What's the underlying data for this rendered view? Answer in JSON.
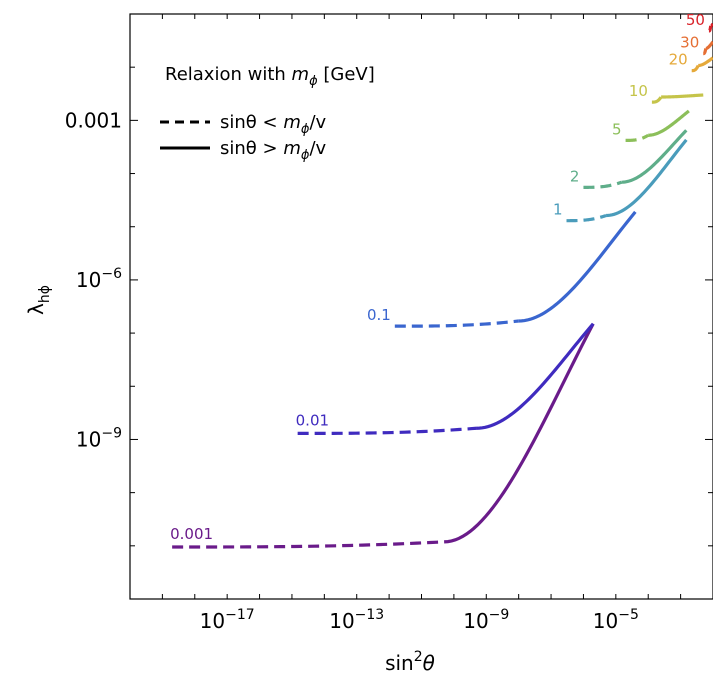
{
  "chart_data": {
    "type": "line",
    "title": "",
    "xlabel": "sin²θ",
    "ylabel": "λ_hϕ",
    "x_scale": "log",
    "y_scale": "log",
    "xlim": [
      1e-20,
      0.01
    ],
    "ylim": [
      1e-12,
      0.1
    ],
    "x_ticks": [
      {
        "value": 1e-17,
        "base": "10",
        "exp": "−17"
      },
      {
        "value": 1e-13,
        "base": "10",
        "exp": "−13"
      },
      {
        "value": 1e-09,
        "base": "10",
        "exp": "−9"
      },
      {
        "value": 1e-05,
        "base": "10",
        "exp": "−5"
      }
    ],
    "y_ticks": [
      {
        "value": 0.001,
        "text": "0.001"
      },
      {
        "value": 1e-06,
        "base": "10",
        "exp": "−6"
      },
      {
        "value": 1e-09,
        "base": "10",
        "exp": "−9"
      }
    ],
    "grid": false,
    "legend": {
      "placement": "top-left",
      "title_prefix": "Relaxion with ",
      "title_symbol": "m",
      "title_subscript": "ϕ",
      "title_suffix": " [GeV]",
      "entries": [
        {
          "style": "dashed",
          "label_prefix": "sinθ < ",
          "symbol": "m",
          "subscript": "ϕ",
          "suffix": "/v"
        },
        {
          "style": "solid",
          "label_prefix": "sinθ > ",
          "symbol": "m",
          "subscript": "ϕ",
          "suffix": "/v"
        }
      ]
    },
    "series": [
      {
        "name": "0.001",
        "color": "#6a1b8a",
        "dashed_x": [
          2e-19,
          5e-11
        ],
        "flat_y": 9.5e-12,
        "solid_x": [
          5e-11,
          2e-06
        ],
        "solid_end_y": 1.5e-07
      },
      {
        "name": "0.01",
        "color": "#3f2bbf",
        "dashed_x": [
          1.5e-15,
          5e-10
        ],
        "flat_y": 1.3e-09,
        "solid_x": [
          5e-10,
          2e-06
        ],
        "solid_end_y": 1.5e-07
      },
      {
        "name": "0.1",
        "color": "#3a66cf",
        "dashed_x": [
          1.5e-12,
          1e-08
        ],
        "flat_y": 1.35e-07,
        "solid_x": [
          1e-08,
          4e-05
        ],
        "solid_end_y": 1.9e-05
      },
      {
        "name": "1",
        "color": "#4a9cbb",
        "dashed_x": [
          3e-07,
          5e-06
        ],
        "flat_y": 1.3e-05,
        "solid_x": [
          5e-06,
          0.0015
        ],
        "solid_end_y": 0.00043
      },
      {
        "name": "2",
        "color": "#5fae8a",
        "dashed_x": [
          1e-06,
          1.5e-05
        ],
        "flat_y": 5.5e-05,
        "solid_x": [
          1.5e-05,
          0.0015
        ],
        "solid_end_y": 0.00065
      },
      {
        "name": "5",
        "color": "#8cbf5a",
        "dashed_x": [
          2e-05,
          0.0001
        ],
        "flat_y": 0.00042,
        "solid_x": [
          0.0001,
          0.0018
        ],
        "solid_end_y": 0.0015
      },
      {
        "name": "10",
        "color": "#c5c44a",
        "dashed_x": [
          0.00013,
          0.00025
        ],
        "flat_y": 0.0022,
        "solid_x": [
          0.00025,
          0.005
        ],
        "solid_end_y": 0.003
      },
      {
        "name": "20",
        "color": "#e5a93a",
        "dashed_x": [
          0.0022,
          0.0035
        ],
        "flat_y": 0.0086,
        "solid_x": [
          0.0035,
          0.01
        ],
        "solid_end_y": 0.015
      },
      {
        "name": "30",
        "color": "#e56f34",
        "dashed_x": [
          0.005,
          0.006
        ],
        "flat_y": 0.018,
        "solid_x": [
          0.006,
          0.01
        ],
        "solid_end_y": 0.03
      },
      {
        "name": "50",
        "color": "#d9232a",
        "dashed_x": [
          0.0075,
          0.0085
        ],
        "flat_y": 0.048,
        "solid_x": [
          0.0085,
          0.01
        ],
        "solid_end_y": 0.065
      }
    ]
  }
}
